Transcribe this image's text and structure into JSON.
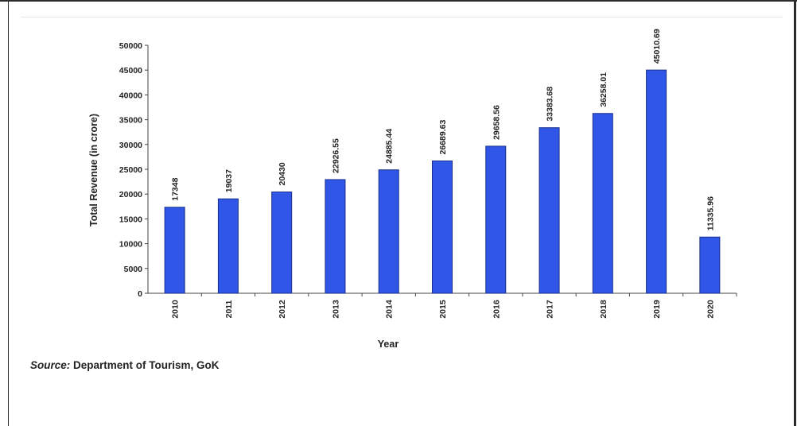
{
  "chart_data": {
    "type": "bar",
    "categories": [
      "2010",
      "2011",
      "2012",
      "2013",
      "2014",
      "2015",
      "2016",
      "2017",
      "2018",
      "2019",
      "2020"
    ],
    "values": [
      17348,
      19037,
      20430,
      22926.55,
      24885.44,
      26689.63,
      29658.56,
      33383.68,
      36258.01,
      45010.69,
      11335.96
    ],
    "value_labels": [
      "17348",
      "19037",
      "20430",
      "22926.55",
      "24885.44",
      "26689.63",
      "29658.56",
      "33383.68",
      "36258.01",
      "45010.69",
      "11335.96"
    ],
    "xlabel": "Year",
    "ylabel": "Total Revenue (in crore)",
    "ylim": [
      0,
      50000
    ],
    "yticks": [
      0,
      5000,
      10000,
      15000,
      20000,
      25000,
      30000,
      35000,
      40000,
      45000,
      50000
    ],
    "grid": false,
    "legend": "none",
    "bar_color": "#2f56e6",
    "bar_edge_color": "#1a2f8a"
  },
  "source": {
    "label": "Source:",
    "text": " Department of Tourism, GoK"
  }
}
